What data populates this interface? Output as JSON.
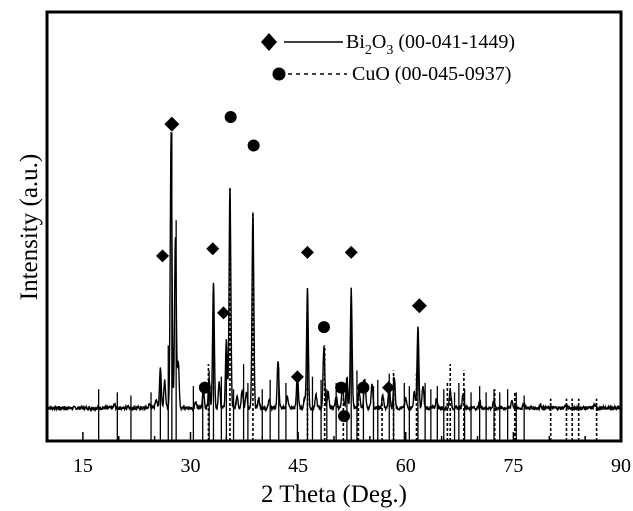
{
  "chart_data": {
    "type": "line",
    "xlabel": "2 Theta (Deg.)",
    "ylabel": "Intensity (a.u.)",
    "xlim": [
      10,
      90
    ],
    "ylim": [
      0,
      100
    ],
    "y_ticks_shown": false,
    "x_ticks": [
      15,
      30,
      45,
      60,
      75,
      90
    ],
    "legend": {
      "placement": "top-right",
      "entries": [
        {
          "marker": "diamond",
          "line": "solid",
          "label_parts": [
            "Bi",
            "2",
            "O",
            "3",
            " (00-041-1449)"
          ]
        },
        {
          "marker": "circle",
          "line": "dashed",
          "label_parts": [
            "CuO (00-045-0937)"
          ]
        }
      ]
    },
    "pattern": {
      "baseline": 6,
      "noise": 0.6,
      "peaks": [
        [
          19.4,
          1.0
        ],
        [
          21.3,
          0.8
        ],
        [
          24.3,
          1.2
        ],
        [
          25.2,
          3.0
        ],
        [
          25.8,
          13.0
        ],
        [
          26.4,
          9.0
        ],
        [
          27.3,
          88.0
        ],
        [
          27.9,
          55.0
        ],
        [
          28.3,
          15.0
        ],
        [
          30.7,
          2.0
        ],
        [
          31.8,
          6.0
        ],
        [
          32.6,
          9.0
        ],
        [
          33.2,
          40.0
        ],
        [
          34.0,
          8.0
        ],
        [
          35.0,
          22.0
        ],
        [
          35.5,
          70.0
        ],
        [
          36.5,
          4.0
        ],
        [
          37.2,
          6.0
        ],
        [
          37.8,
          5.0
        ],
        [
          38.7,
          62.0
        ],
        [
          39.5,
          3.0
        ],
        [
          41.0,
          3.0
        ],
        [
          42.2,
          15.0
        ],
        [
          43.5,
          4.0
        ],
        [
          44.9,
          11.0
        ],
        [
          45.9,
          3.0
        ],
        [
          46.3,
          38.0
        ],
        [
          47.5,
          4.0
        ],
        [
          48.6,
          20.0
        ],
        [
          49.2,
          5.0
        ],
        [
          50.3,
          4.0
        ],
        [
          51.2,
          7.0
        ],
        [
          51.8,
          10.0
        ],
        [
          52.4,
          38.0
        ],
        [
          53.5,
          6.0
        ],
        [
          54.3,
          9.0
        ],
        [
          55.3,
          8.0
        ],
        [
          56.8,
          4.0
        ],
        [
          57.7,
          7.0
        ],
        [
          58.4,
          10.0
        ],
        [
          60.0,
          3.0
        ],
        [
          61.2,
          5.0
        ],
        [
          61.7,
          26.0
        ],
        [
          62.4,
          7.0
        ],
        [
          64.3,
          3.0
        ],
        [
          66.2,
          6.0
        ],
        [
          68.0,
          5.0
        ],
        [
          70.3,
          2.0
        ],
        [
          72.3,
          2.5
        ],
        [
          74.8,
          2.5
        ],
        [
          76.5,
          1.5
        ],
        [
          78.8,
          1.0
        ],
        [
          82.3,
          1.0
        ],
        [
          86.3,
          1.0
        ]
      ]
    },
    "reference_bi2o3": {
      "line_style": "solid",
      "sticks": [
        [
          17.2,
          6
        ],
        [
          19.8,
          5
        ],
        [
          21.7,
          4
        ],
        [
          24.5,
          5
        ],
        [
          25.8,
          13
        ],
        [
          26.9,
          20
        ],
        [
          27.4,
          88
        ],
        [
          28.0,
          60
        ],
        [
          30.4,
          7
        ],
        [
          31.7,
          8
        ],
        [
          32.6,
          12
        ],
        [
          33.2,
          40
        ],
        [
          34.3,
          10
        ],
        [
          35.0,
          22
        ],
        [
          36.0,
          6
        ],
        [
          37.4,
          14
        ],
        [
          38.0,
          8
        ],
        [
          40.0,
          6
        ],
        [
          41.1,
          9
        ],
        [
          42.3,
          13
        ],
        [
          43.3,
          8
        ],
        [
          44.9,
          11
        ],
        [
          46.3,
          38
        ],
        [
          47.0,
          10
        ],
        [
          48.2,
          9
        ],
        [
          49.0,
          6
        ],
        [
          50.3,
          8
        ],
        [
          51.8,
          9
        ],
        [
          52.4,
          38
        ],
        [
          53.2,
          12
        ],
        [
          54.1,
          9
        ],
        [
          55.5,
          7
        ],
        [
          56.1,
          9
        ],
        [
          57.7,
          11
        ],
        [
          58.3,
          10
        ],
        [
          59.8,
          8
        ],
        [
          60.5,
          7
        ],
        [
          61.7,
          26
        ],
        [
          62.7,
          8
        ],
        [
          63.5,
          6
        ],
        [
          64.4,
          7
        ],
        [
          65.3,
          6
        ],
        [
          66.8,
          5
        ],
        [
          67.4,
          8
        ],
        [
          68.2,
          6
        ],
        [
          69.1,
          5
        ],
        [
          70.3,
          7
        ],
        [
          71.2,
          5
        ],
        [
          72.3,
          6
        ],
        [
          73.1,
          5
        ],
        [
          74.2,
          6
        ],
        [
          75.4,
          5
        ],
        [
          76.5,
          4
        ]
      ]
    },
    "reference_cuo": {
      "line_style": "dashed",
      "sticks": [
        [
          32.5,
          14
        ],
        [
          35.5,
          70
        ],
        [
          38.7,
          62
        ],
        [
          46.3,
          7
        ],
        [
          48.7,
          20
        ],
        [
          51.3,
          4
        ],
        [
          53.4,
          5
        ],
        [
          56.7,
          4
        ],
        [
          58.3,
          12
        ],
        [
          61.5,
          11
        ],
        [
          65.8,
          8
        ],
        [
          66.2,
          14
        ],
        [
          68.1,
          12
        ],
        [
          72.4,
          6
        ],
        [
          75.2,
          5
        ],
        [
          80.2,
          3
        ],
        [
          82.4,
          3
        ],
        [
          83.2,
          3
        ],
        [
          84.1,
          3
        ],
        [
          86.6,
          3
        ]
      ]
    },
    "bi2o3_markers": [
      [
        26.1,
        2
      ],
      [
        27.4,
        2
      ],
      [
        33.1,
        1
      ],
      [
        34.6,
        1
      ],
      [
        44.9,
        1
      ],
      [
        46.3,
        1
      ],
      [
        52.4,
        1
      ],
      [
        57.6,
        1
      ],
      [
        61.9,
        2
      ]
    ],
    "cuo_markers": [
      [
        32.0,
        0
      ],
      [
        35.6,
        0
      ],
      [
        38.8,
        0
      ],
      [
        48.6,
        0
      ],
      [
        51.0,
        0
      ],
      [
        51.4,
        0
      ],
      [
        54.1,
        0
      ]
    ],
    "marker_levels": {
      "diamond": [
        [
          26.1,
          52
        ],
        [
          27.4,
          89
        ],
        [
          33.1,
          54
        ],
        [
          34.6,
          36
        ],
        [
          44.9,
          18
        ],
        [
          46.3,
          53
        ],
        [
          52.4,
          53
        ],
        [
          57.6,
          15
        ],
        [
          61.9,
          38
        ]
      ],
      "circle": [
        [
          32.0,
          15
        ],
        [
          35.6,
          91
        ],
        [
          38.8,
          83
        ],
        [
          48.6,
          32
        ],
        [
          51.0,
          15
        ],
        [
          51.4,
          7
        ],
        [
          54.1,
          15
        ]
      ]
    }
  }
}
